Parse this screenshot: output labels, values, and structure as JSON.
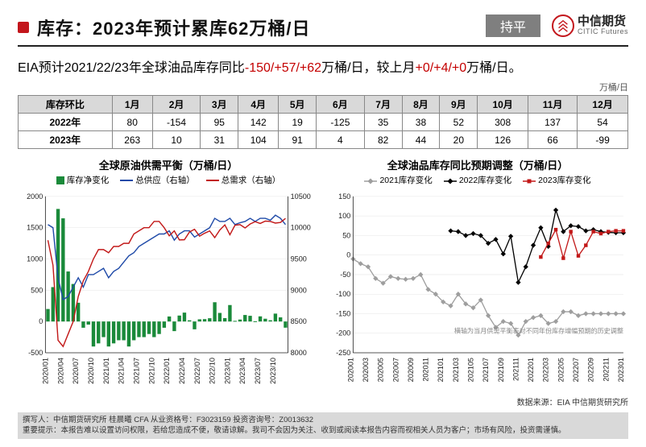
{
  "header": {
    "title": "库存：2023年预计累库62万桶/日",
    "badge": "持平",
    "logo_cn": "中信期货",
    "logo_en": "CITIC Futures"
  },
  "subtitle": {
    "prefix": "EIA预计2021/22/23年全球油品库存同比",
    "red1": "-150/+57/+62",
    "mid1": "万桶/日，较上月",
    "red2": "+0/+4/+0",
    "mid2": "万桶/日。"
  },
  "table": {
    "unit": "万桶/日",
    "corner": "库存环比",
    "months": [
      "1月",
      "2月",
      "3月",
      "4月",
      "5月",
      "6月",
      "7月",
      "8月",
      "9月",
      "10月",
      "11月",
      "12月"
    ],
    "rows": [
      {
        "label": "2022年",
        "values": [
          80,
          -154,
          95,
          142,
          19,
          -125,
          35,
          38,
          52,
          308,
          137,
          54
        ]
      },
      {
        "label": "2023年",
        "values": [
          263,
          10,
          31,
          104,
          91,
          4,
          82,
          44,
          20,
          126,
          66,
          -99
        ]
      }
    ]
  },
  "chart_left": {
    "title": "全球原油供需平衡（万桶/日）",
    "legend": [
      {
        "label": "库存净变化",
        "type": "bar",
        "color": "#1a8a3a"
      },
      {
        "label": "总供应（右轴）",
        "type": "line",
        "color": "#1f4aa8"
      },
      {
        "label": "总需求（右轴）",
        "type": "line",
        "color": "#c21818"
      }
    ],
    "x_labels": [
      "2020/01",
      "2020/04",
      "2020/07",
      "2020/10",
      "2021/01",
      "2021/04",
      "2021/07",
      "2021/10",
      "2022/01",
      "2022/04",
      "2022/07",
      "2022/10",
      "2023/01",
      "2023/04",
      "2023/07",
      "2023/10"
    ],
    "y_left": {
      "min": -500,
      "max": 2000,
      "step": 500
    },
    "y_right": {
      "min": 8000,
      "max": 10500,
      "step": 500
    },
    "bars": [
      200,
      550,
      1800,
      1650,
      800,
      600,
      300,
      -100,
      -50,
      -400,
      -350,
      -250,
      -400,
      -350,
      -300,
      -300,
      -400,
      -300,
      -250,
      -250,
      -200,
      -250,
      -200,
      -100,
      80,
      -154,
      95,
      142,
      19,
      -125,
      35,
      38,
      52,
      308,
      137,
      54,
      263,
      10,
      31,
      104,
      91,
      4,
      82,
      44,
      20,
      126,
      66,
      -99
    ],
    "supply": [
      10050,
      10000,
      9200,
      8850,
      8900,
      9050,
      9200,
      9050,
      9250,
      9250,
      9300,
      9350,
      9200,
      9300,
      9350,
      9450,
      9550,
      9600,
      9700,
      9750,
      9800,
      9850,
      9900,
      9900,
      9950,
      9800,
      9900,
      9950,
      9950,
      9850,
      9900,
      9950,
      10000,
      10150,
      10100,
      10100,
      10150,
      10050,
      10080,
      10100,
      10150,
      10100,
      10150,
      10150,
      10120,
      10200,
      10150,
      10050
    ],
    "demand": [
      9800,
      9400,
      8200,
      8100,
      8300,
      8500,
      8900,
      9150,
      9300,
      9500,
      9650,
      9650,
      9600,
      9700,
      9700,
      9750,
      9750,
      9900,
      9950,
      10000,
      10000,
      10100,
      10100,
      10000,
      9870,
      9950,
      9805,
      9808,
      9931,
      9975,
      9865,
      9912,
      9948,
      9842,
      9963,
      10046,
      9887,
      10040,
      10049,
      9996,
      10059,
      10096,
      10068,
      10106,
      10100,
      10074,
      10084,
      10149
    ],
    "colors": {
      "bar": "#1a8a3a",
      "supply": "#1f4aa8",
      "demand": "#c21818",
      "grid": "#e5e5e5",
      "axis": "#222222"
    }
  },
  "chart_right": {
    "title": "全球油品库存同比预期调整（万桶/日）",
    "legend": [
      {
        "label": "2021库存变化",
        "color": "#9e9e9e",
        "marker": "diamond"
      },
      {
        "label": "2022库存变化",
        "color": "#000000",
        "marker": "diamond"
      },
      {
        "label": "2023库存变化",
        "color": "#c21818",
        "marker": "square"
      }
    ],
    "x_labels": [
      "202001",
      "202003",
      "202005",
      "202007",
      "202009",
      "202011",
      "202101",
      "202103",
      "202105",
      "202107",
      "202109",
      "202111",
      "202201",
      "202203",
      "202205",
      "202207",
      "202209",
      "202211",
      "202301"
    ],
    "y": {
      "min": -250,
      "max": 150,
      "step": 50
    },
    "note": "横轴为当月供需平衡表对不同年份库存增幅预期的历史调整",
    "series_2021": [
      -10,
      -22,
      -30,
      -60,
      -72,
      -55,
      -60,
      -62,
      -60,
      -50,
      -88,
      -100,
      -120,
      -130,
      -100,
      -125,
      -135,
      -115,
      -155,
      -185,
      -170,
      -175,
      -205,
      -170,
      -160,
      -155,
      -175,
      -170,
      -145,
      -145,
      -155,
      -150,
      -150,
      -150,
      -150,
      -150,
      -150
    ],
    "series_2022": [
      62,
      60,
      50,
      55,
      50,
      30,
      40,
      3,
      48,
      -70,
      -30,
      25,
      70,
      22,
      115,
      60,
      75,
      73,
      62,
      65,
      60,
      58,
      57,
      57
    ],
    "series_2023": [
      -5,
      30,
      65,
      -8,
      60,
      -2,
      25,
      60,
      55,
      60,
      62,
      62
    ],
    "colors": {
      "s2021": "#9e9e9e",
      "s2022": "#000000",
      "s2023": "#c21818",
      "grid": "#e5e5e5",
      "axis": "#222222"
    }
  },
  "source": "数据来源：EIA 中信期货研究所",
  "footer": {
    "line1": "撰写人：中信期货研究所  桂晨曦 CFA  从业资格号：F3023159  投资咨询号：Z0013632",
    "line2": "重要提示：本报告难以设置访问权限，若给您造成不便，敬请谅解。我司不会因为关注、收到或阅读本报告内容而视相关人员为客户；市场有风险，投资需谨慎。"
  },
  "style": {
    "title_fontsize": 22,
    "subtitle_fontsize": 16,
    "chart_title_fontsize": 13,
    "axis_fontsize": 9,
    "background": "#ffffff",
    "accent_red": "#c40000"
  }
}
